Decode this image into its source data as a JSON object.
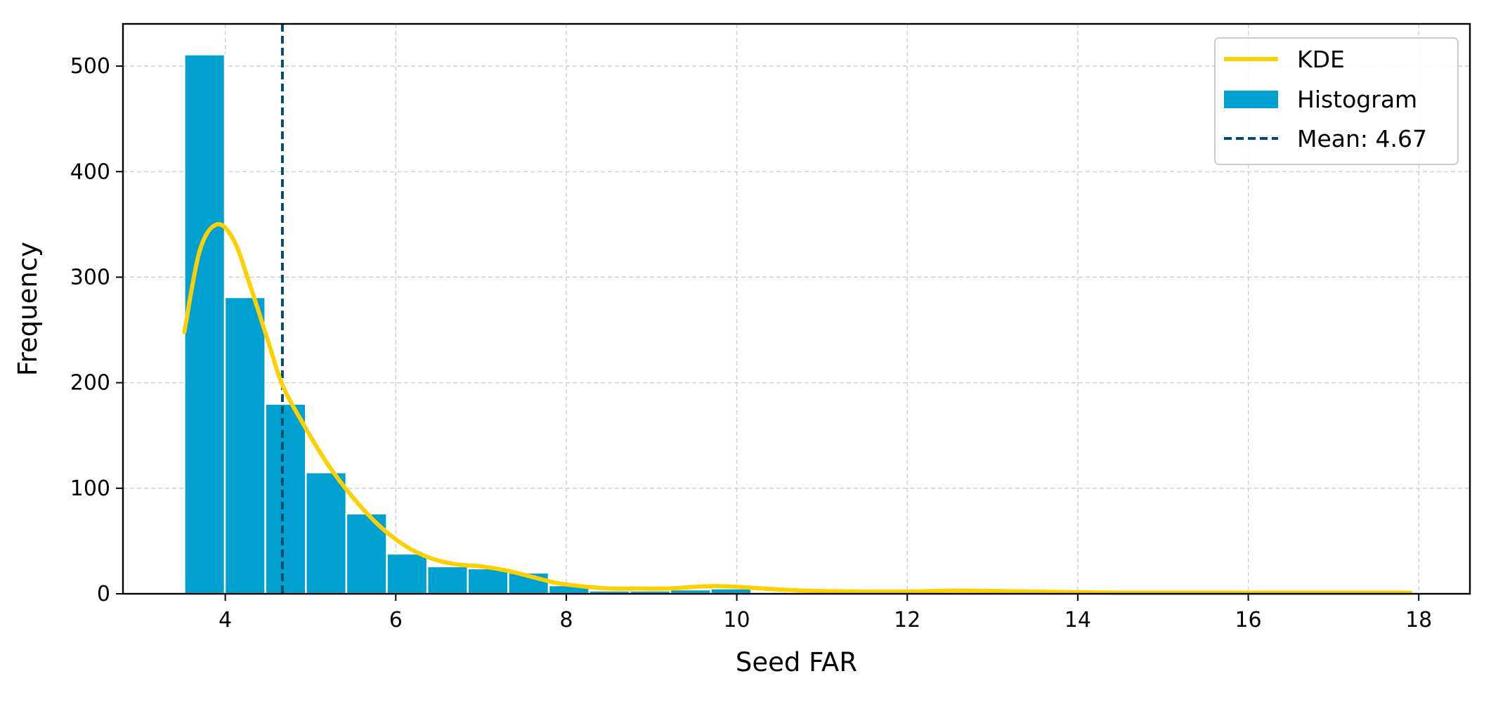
{
  "chart_data": {
    "type": "bar",
    "xlabel": "Seed FAR",
    "ylabel": "Frequency",
    "xlim": [
      2.8,
      18.6
    ],
    "ylim": [
      0,
      540
    ],
    "x_ticks": [
      4,
      6,
      8,
      10,
      12,
      14,
      16,
      18
    ],
    "y_ticks": [
      0,
      100,
      200,
      300,
      400,
      500
    ],
    "grid": true,
    "legend_position": "top-right",
    "histogram": {
      "name": "Histogram",
      "color": "#00A0D0",
      "bin_edges": [
        3.52,
        3.995,
        4.47,
        4.945,
        5.42,
        5.895,
        6.37,
        6.845,
        7.32,
        7.795,
        8.27,
        8.745,
        9.22,
        9.695,
        10.17
      ],
      "values": [
        511,
        281,
        180,
        115,
        76,
        38,
        26,
        24,
        20,
        8,
        3,
        3,
        4,
        5
      ]
    },
    "kde": {
      "name": "KDE",
      "color": "#FFD000",
      "x": [
        3.52,
        3.7,
        3.9,
        4.1,
        4.3,
        4.5,
        4.67,
        4.9,
        5.2,
        5.5,
        5.8,
        6.1,
        6.4,
        6.7,
        7.0,
        7.3,
        7.6,
        7.9,
        8.2,
        8.5,
        8.8,
        9.2,
        9.6,
        9.9,
        10.3,
        10.8,
        11.5,
        12.0,
        12.6,
        13.5,
        14.5,
        16.0,
        17.9
      ],
      "y": [
        248,
        325,
        350,
        335,
        290,
        240,
        198,
        163,
        123,
        91,
        65,
        46,
        34,
        28,
        26,
        22,
        16,
        10,
        7,
        5,
        5,
        5,
        7,
        7,
        5,
        3,
        2,
        2,
        3,
        2,
        1,
        1,
        1
      ]
    },
    "mean": {
      "label": "Mean: 4.67",
      "value": 4.67,
      "color": "#004C70"
    },
    "legend": [
      "KDE",
      "Histogram",
      "Mean: 4.67"
    ]
  }
}
